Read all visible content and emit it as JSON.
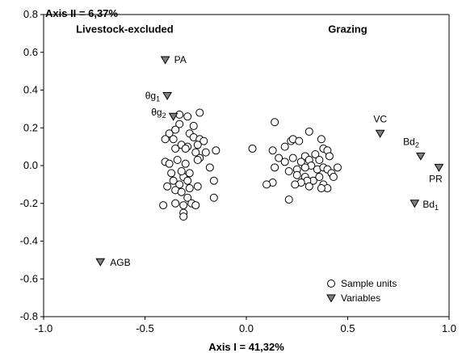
{
  "chart_data": {
    "type": "scatter",
    "xlabel": "Axis I = 41,32%",
    "ylabel": "Axis II = 6,37%",
    "xlim": [
      -1.0,
      1.0
    ],
    "ylim": [
      -0.8,
      0.8
    ],
    "x_ticks": [
      "-1.0",
      "-0.5",
      "0.0",
      "0.5",
      "1.0"
    ],
    "y_ticks": [
      "0.8",
      "0.6",
      "0.4",
      "0.2",
      "0.0",
      "-0.2",
      "-0.4",
      "-0.6",
      "-0.8"
    ],
    "group_labels": [
      {
        "text": "Livestock-excluded",
        "x": -0.6,
        "y": 0.72
      },
      {
        "text": "Grazing",
        "x": 0.5,
        "y": 0.72
      }
    ],
    "legend": {
      "position": "bottom-right",
      "entries": [
        {
          "name": "Sample units",
          "marker": "open-circle"
        },
        {
          "name": "Variables",
          "marker": "filled-triangle"
        }
      ]
    },
    "colors": {
      "circle_stroke": "#000000",
      "triangle_fill": "#808080",
      "axis": "#000000"
    },
    "series": [
      {
        "name": "Sample units",
        "marker": "open-circle",
        "points": [
          [
            -0.33,
            0.27
          ],
          [
            -0.29,
            0.26
          ],
          [
            -0.23,
            0.28
          ],
          [
            -0.26,
            0.21
          ],
          [
            -0.33,
            0.22
          ],
          [
            -0.38,
            0.17
          ],
          [
            -0.28,
            0.17
          ],
          [
            -0.26,
            0.15
          ],
          [
            -0.23,
            0.14
          ],
          [
            -0.36,
            0.14
          ],
          [
            -0.4,
            0.14
          ],
          [
            -0.32,
            0.11
          ],
          [
            -0.29,
            0.1
          ],
          [
            -0.24,
            0.11
          ],
          [
            -0.21,
            0.13
          ],
          [
            -0.15,
            0.08
          ],
          [
            -0.35,
            0.09
          ],
          [
            -0.3,
            0.09
          ],
          [
            -0.25,
            0.07
          ],
          [
            -0.2,
            0.07
          ],
          [
            -0.4,
            0.02
          ],
          [
            -0.34,
            0.03
          ],
          [
            -0.3,
            0.01
          ],
          [
            -0.23,
            0.04
          ],
          [
            -0.38,
            0.01
          ],
          [
            -0.18,
            -0.01
          ],
          [
            -0.24,
            0.03
          ],
          [
            -0.37,
            -0.04
          ],
          [
            -0.31,
            -0.06
          ],
          [
            -0.28,
            -0.04
          ],
          [
            -0.36,
            -0.08
          ],
          [
            -0.33,
            -0.1
          ],
          [
            -0.29,
            -0.08
          ],
          [
            -0.39,
            -0.11
          ],
          [
            -0.35,
            -0.13
          ],
          [
            -0.28,
            -0.12
          ],
          [
            -0.24,
            -0.11
          ],
          [
            -0.16,
            -0.08
          ],
          [
            -0.32,
            -0.14
          ],
          [
            -0.29,
            -0.17
          ],
          [
            -0.27,
            -0.2
          ],
          [
            -0.31,
            -0.21
          ],
          [
            -0.35,
            -0.2
          ],
          [
            -0.41,
            -0.21
          ],
          [
            -0.16,
            -0.17
          ],
          [
            -0.31,
            -0.25
          ],
          [
            -0.31,
            -0.27
          ],
          [
            -0.35,
            0.19
          ],
          [
            -0.25,
            -0.21
          ],
          [
            -0.32,
            -0.03
          ],
          [
            0.03,
            0.09
          ],
          [
            0.14,
            0.23
          ],
          [
            0.13,
            0.08
          ],
          [
            0.16,
            0.04
          ],
          [
            0.19,
            0.1
          ],
          [
            0.22,
            0.13
          ],
          [
            0.23,
            0.14
          ],
          [
            0.31,
            0.18
          ],
          [
            0.26,
            0.13
          ],
          [
            0.37,
            0.14
          ],
          [
            0.34,
            0.06
          ],
          [
            0.38,
            0.09
          ],
          [
            0.4,
            0.08
          ],
          [
            0.29,
            0.05
          ],
          [
            0.36,
            0.03
          ],
          [
            0.41,
            0.05
          ],
          [
            0.31,
            0.03
          ],
          [
            0.23,
            0.04
          ],
          [
            0.19,
            0.02
          ],
          [
            0.27,
            0.02
          ],
          [
            0.32,
            0.0
          ],
          [
            0.29,
            -0.01
          ],
          [
            0.25,
            -0.02
          ],
          [
            0.14,
            -0.01
          ],
          [
            0.21,
            -0.03
          ],
          [
            0.35,
            -0.02
          ],
          [
            0.38,
            -0.01
          ],
          [
            0.4,
            -0.02
          ],
          [
            0.42,
            -0.04
          ],
          [
            0.45,
            -0.01
          ],
          [
            0.29,
            -0.06
          ],
          [
            0.33,
            -0.08
          ],
          [
            0.36,
            -0.06
          ],
          [
            0.25,
            -0.05
          ],
          [
            0.43,
            -0.06
          ],
          [
            0.3,
            -0.08
          ],
          [
            0.27,
            -0.09
          ],
          [
            0.24,
            -0.1
          ],
          [
            0.38,
            -0.1
          ],
          [
            0.13,
            -0.09
          ],
          [
            0.1,
            -0.1
          ],
          [
            0.21,
            -0.18
          ],
          [
            0.4,
            -0.12
          ],
          [
            0.37,
            -0.12
          ],
          [
            0.31,
            -0.11
          ]
        ]
      },
      {
        "name": "Variables",
        "marker": "filled-triangle",
        "points": [
          {
            "label": "PA",
            "x": -0.4,
            "y": 0.56
          },
          {
            "label": "θg1",
            "x": -0.39,
            "y": 0.37
          },
          {
            "label": "θg2",
            "x": -0.36,
            "y": 0.26
          },
          {
            "label": "VC",
            "x": 0.66,
            "y": 0.17
          },
          {
            "label": "Bd2",
            "x": 0.86,
            "y": 0.05
          },
          {
            "label": "PR",
            "x": 0.95,
            "y": -0.01
          },
          {
            "label": "Bd1",
            "x": 0.83,
            "y": -0.2
          },
          {
            "label": "AGB",
            "x": -0.72,
            "y": -0.51
          }
        ]
      }
    ]
  }
}
